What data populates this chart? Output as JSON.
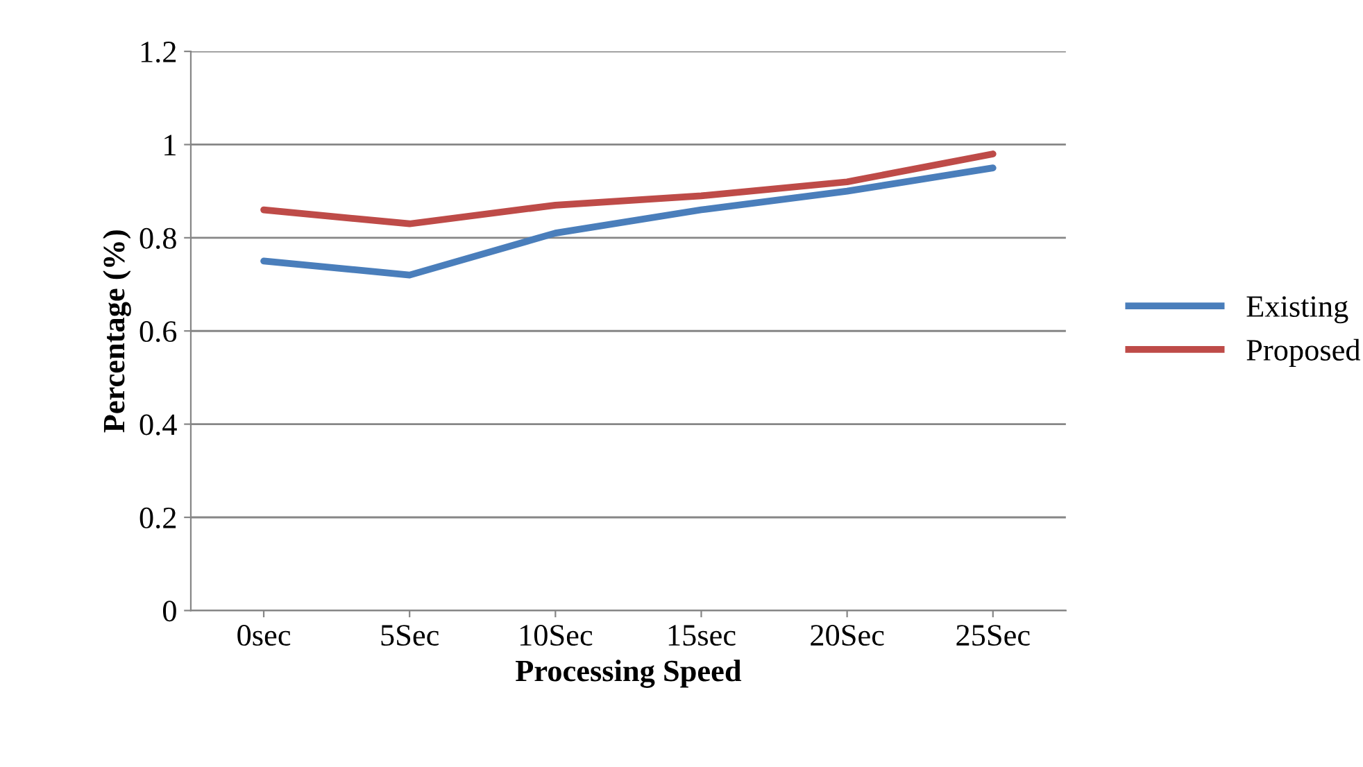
{
  "chart_data": {
    "type": "line",
    "xlabel": "Processing Speed",
    "ylabel": "Percentage (%)",
    "categories": [
      "0sec",
      "5Sec",
      "10Sec",
      "15sec",
      "20Sec",
      "25Sec"
    ],
    "series": [
      {
        "name": "Existing",
        "color": "#4a7ebb",
        "values": [
          0.75,
          0.72,
          0.81,
          0.86,
          0.9,
          0.95
        ]
      },
      {
        "name": "Proposed",
        "color": "#be4b48",
        "values": [
          0.86,
          0.83,
          0.87,
          0.89,
          0.92,
          0.98
        ]
      }
    ],
    "ylim": [
      0,
      1.2
    ],
    "yticks": [
      0,
      0.2,
      0.4,
      0.6,
      0.8,
      1,
      1.2
    ],
    "grid": "y",
    "legend": "right",
    "marker": "none",
    "line_style": "solid"
  }
}
